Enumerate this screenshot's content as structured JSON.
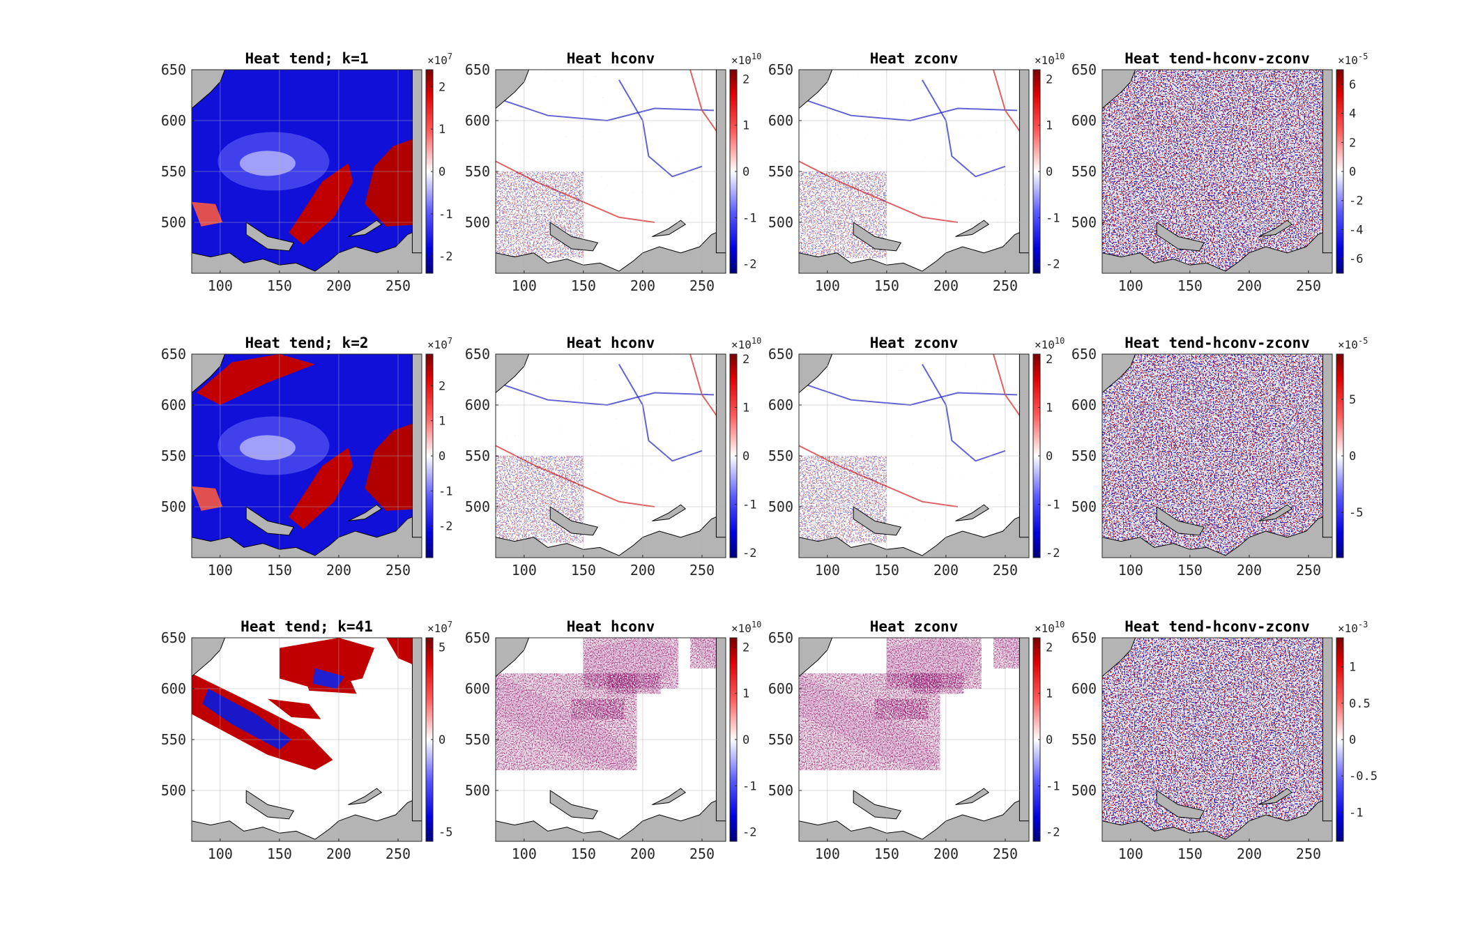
{
  "figure": {
    "xticks": [
      100,
      150,
      200,
      250
    ],
    "yticks": [
      500,
      550,
      600,
      650
    ],
    "xlim": [
      76,
      270
    ],
    "ylim": [
      450,
      650
    ],
    "colormap": "blue-white-red",
    "grid": true
  },
  "chart_data": [
    {
      "type": "heatmap",
      "title": "Heat tend; k=1",
      "xlim": [
        76,
        270
      ],
      "ylim": [
        450,
        650
      ],
      "xticks": [
        100,
        150,
        200,
        250
      ],
      "yticks": [
        500,
        550,
        600,
        650
      ],
      "colorbar": {
        "multiplier": "×10",
        "exponent": "7",
        "ticks": [
          -2,
          -1,
          0,
          1,
          2
        ],
        "tick_labels": [
          "-2",
          "-1",
          "0",
          "1",
          "2"
        ],
        "range": [
          -2.4,
          2.4
        ]
      }
    },
    {
      "type": "heatmap",
      "title": "Heat hconv",
      "xlim": [
        76,
        270
      ],
      "ylim": [
        450,
        650
      ],
      "xticks": [
        100,
        150,
        200,
        250
      ],
      "yticks": [
        500,
        550,
        600,
        650
      ],
      "colorbar": {
        "multiplier": "×10",
        "exponent": "10",
        "ticks": [
          -2,
          -1,
          0,
          1,
          2
        ],
        "tick_labels": [
          "-2",
          "-1",
          "0",
          "1",
          "2"
        ],
        "range": [
          -2.2,
          2.2
        ]
      }
    },
    {
      "type": "heatmap",
      "title": "Heat zconv",
      "xlim": [
        76,
        270
      ],
      "ylim": [
        450,
        650
      ],
      "xticks": [
        100,
        150,
        200,
        250
      ],
      "yticks": [
        500,
        550,
        600,
        650
      ],
      "colorbar": {
        "multiplier": "×10",
        "exponent": "10",
        "ticks": [
          -2,
          -1,
          0,
          1,
          2
        ],
        "tick_labels": [
          "-2",
          "-1",
          "0",
          "1",
          "2"
        ],
        "range": [
          -2.2,
          2.2
        ]
      }
    },
    {
      "type": "heatmap",
      "title": "Heat tend-hconv-zconv",
      "xlim": [
        76,
        270
      ],
      "ylim": [
        450,
        650
      ],
      "xticks": [
        100,
        150,
        200,
        250
      ],
      "yticks": [
        500,
        550,
        600,
        650
      ],
      "colorbar": {
        "multiplier": "×10",
        "exponent": "-5",
        "ticks": [
          -6,
          -4,
          -2,
          0,
          2,
          4,
          6
        ],
        "tick_labels": [
          "-6",
          "-4",
          "-2",
          "0",
          "2",
          "4",
          "6"
        ],
        "range": [
          -7,
          7
        ]
      }
    },
    {
      "type": "heatmap",
      "title": "Heat tend; k=2",
      "xlim": [
        76,
        270
      ],
      "ylim": [
        450,
        650
      ],
      "xticks": [
        100,
        150,
        200,
        250
      ],
      "yticks": [
        500,
        550,
        600,
        650
      ],
      "colorbar": {
        "multiplier": "×10",
        "exponent": "7",
        "ticks": [
          -2,
          -1,
          0,
          1,
          2
        ],
        "tick_labels": [
          "-2",
          "-1",
          "0",
          "1",
          "2"
        ],
        "range": [
          -2.9,
          2.9
        ]
      }
    },
    {
      "type": "heatmap",
      "title": "Heat hconv",
      "xlim": [
        76,
        270
      ],
      "ylim": [
        450,
        650
      ],
      "xticks": [
        100,
        150,
        200,
        250
      ],
      "yticks": [
        500,
        550,
        600,
        650
      ],
      "colorbar": {
        "multiplier": "×10",
        "exponent": "10",
        "ticks": [
          -2,
          -1,
          0,
          1,
          2
        ],
        "tick_labels": [
          "-2",
          "-1",
          "0",
          "1",
          "2"
        ],
        "range": [
          -2.1,
          2.1
        ]
      }
    },
    {
      "type": "heatmap",
      "title": "Heat zconv",
      "xlim": [
        76,
        270
      ],
      "ylim": [
        450,
        650
      ],
      "xticks": [
        100,
        150,
        200,
        250
      ],
      "yticks": [
        500,
        550,
        600,
        650
      ],
      "colorbar": {
        "multiplier": "×10",
        "exponent": "10",
        "ticks": [
          -2,
          -1,
          0,
          1,
          2
        ],
        "tick_labels": [
          "-2",
          "-1",
          "0",
          "1",
          "2"
        ],
        "range": [
          -2.1,
          2.1
        ]
      }
    },
    {
      "type": "heatmap",
      "title": "Heat tend-hconv-zconv",
      "xlim": [
        76,
        270
      ],
      "ylim": [
        450,
        650
      ],
      "xticks": [
        100,
        150,
        200,
        250
      ],
      "yticks": [
        500,
        550,
        600,
        650
      ],
      "colorbar": {
        "multiplier": "×10",
        "exponent": "-5",
        "ticks": [
          -5,
          0,
          5
        ],
        "tick_labels": [
          "-5",
          "0",
          "5"
        ],
        "range": [
          -9,
          9
        ]
      }
    },
    {
      "type": "heatmap",
      "title": "Heat tend; k=41",
      "xlim": [
        76,
        270
      ],
      "ylim": [
        450,
        650
      ],
      "xticks": [
        100,
        150,
        200,
        250
      ],
      "yticks": [
        500,
        550,
        600,
        650
      ],
      "colorbar": {
        "multiplier": "×10",
        "exponent": "7",
        "ticks": [
          -5,
          0,
          5
        ],
        "tick_labels": [
          "-5",
          "0",
          "5"
        ],
        "range": [
          -5.5,
          5.5
        ]
      }
    },
    {
      "type": "heatmap",
      "title": "Heat hconv",
      "xlim": [
        76,
        270
      ],
      "ylim": [
        450,
        650
      ],
      "xticks": [
        100,
        150,
        200,
        250
      ],
      "yticks": [
        500,
        550,
        600,
        650
      ],
      "colorbar": {
        "multiplier": "×10",
        "exponent": "10",
        "ticks": [
          -2,
          -1,
          0,
          1,
          2
        ],
        "tick_labels": [
          "-2",
          "-1",
          "0",
          "1",
          "2"
        ],
        "range": [
          -2.2,
          2.2
        ]
      }
    },
    {
      "type": "heatmap",
      "title": "Heat zconv",
      "xlim": [
        76,
        270
      ],
      "ylim": [
        450,
        650
      ],
      "xticks": [
        100,
        150,
        200,
        250
      ],
      "yticks": [
        500,
        550,
        600,
        650
      ],
      "colorbar": {
        "multiplier": "×10",
        "exponent": "10",
        "ticks": [
          -2,
          -1,
          0,
          1,
          2
        ],
        "tick_labels": [
          "-2",
          "-1",
          "0",
          "1",
          "2"
        ],
        "range": [
          -2.2,
          2.2
        ]
      }
    },
    {
      "type": "heatmap",
      "title": "Heat tend-hconv-zconv",
      "xlim": [
        76,
        270
      ],
      "ylim": [
        450,
        650
      ],
      "xticks": [
        100,
        150,
        200,
        250
      ],
      "yticks": [
        500,
        550,
        600,
        650
      ],
      "colorbar": {
        "multiplier": "×10",
        "exponent": "-3",
        "ticks": [
          -1,
          -0.5,
          0,
          0.5,
          1
        ],
        "tick_labels": [
          "-1",
          "-0.5",
          "0",
          "0.5",
          "1"
        ],
        "range": [
          -1.4,
          1.4
        ]
      }
    }
  ]
}
